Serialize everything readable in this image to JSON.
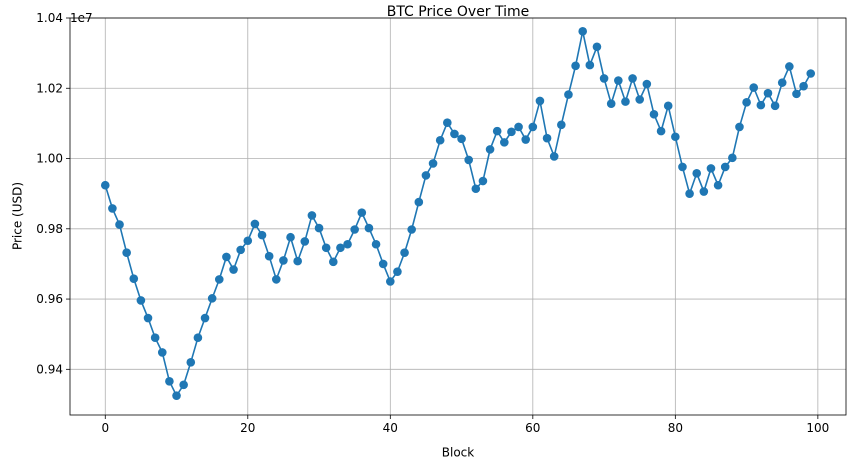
{
  "chart_data": {
    "type": "line",
    "title": "BTC Price Over Time",
    "xlabel": "Block",
    "ylabel": "Price (USD)",
    "y_offset_label": "1e7",
    "xlim": [
      -4.95,
      103.95
    ],
    "ylim": [
      9270000,
      10400000
    ],
    "x_ticks": [
      0,
      20,
      40,
      60,
      80,
      100
    ],
    "y_ticks": [
      9400000,
      9600000,
      9800000,
      10000000,
      10200000,
      10400000
    ],
    "y_tick_labels": [
      "0.94",
      "0.96",
      "0.98",
      "1.00",
      "1.02",
      "1.04"
    ],
    "grid": true,
    "marker": "circle",
    "line_color": "#1f77b4",
    "series": [
      {
        "x": [
          0,
          1,
          2,
          3,
          4,
          5,
          6,
          7,
          8,
          9,
          10,
          11,
          12,
          13,
          14,
          15,
          16,
          17,
          18,
          19,
          20,
          21,
          22,
          23,
          24,
          25,
          26,
          27,
          28,
          29,
          30,
          31,
          32,
          33,
          34,
          35,
          36,
          37,
          38,
          39,
          40,
          41,
          42,
          43,
          44,
          45,
          46,
          47,
          48,
          49,
          50,
          51,
          52,
          53,
          54,
          55,
          56,
          57,
          58,
          59,
          60,
          61,
          62,
          63,
          64,
          65,
          66,
          67,
          68,
          69,
          70,
          71,
          72,
          73,
          74,
          75,
          76,
          77,
          78,
          79,
          80,
          81,
          82,
          83,
          84,
          85,
          86,
          87,
          88,
          89,
          90,
          91,
          92,
          93,
          94,
          95,
          96,
          97,
          98,
          99
        ],
        "values": [
          9924000,
          9858000,
          9812000,
          9732000,
          9658000,
          9596000,
          9546000,
          9490000,
          9448000,
          9366000,
          9325000,
          9356000,
          9420000,
          9490000,
          9546000,
          9602000,
          9656000,
          9720000,
          9684000,
          9740000,
          9766000,
          9814000,
          9782000,
          9722000,
          9656000,
          9710000,
          9776000,
          9708000,
          9764000,
          9838000,
          9802000,
          9746000,
          9706000,
          9746000,
          9756000,
          9798000,
          9846000,
          9802000,
          9756000,
          9700000,
          9650000,
          9678000,
          9732000,
          9798000,
          9876000,
          9952000,
          9986000,
          10052000,
          10102000,
          10070000,
          10056000,
          9996000,
          9914000,
          9936000,
          10026000,
          10078000,
          10046000,
          10076000,
          10090000,
          10054000,
          10090000,
          10164000,
          10058000,
          10006000,
          10096000,
          10182000,
          10264000,
          10362000,
          10266000,
          10318000,
          10228000,
          10156000,
          10222000,
          10162000,
          10228000,
          10168000,
          10212000,
          10126000,
          10078000,
          10150000,
          10062000,
          9976000,
          9900000,
          9958000,
          9906000,
          9972000,
          9924000,
          9976000,
          10002000,
          10090000,
          10160000,
          10202000,
          10152000,
          10186000,
          10150000,
          10216000,
          10262000,
          10184000,
          10206000,
          10242000
        ]
      }
    ]
  }
}
